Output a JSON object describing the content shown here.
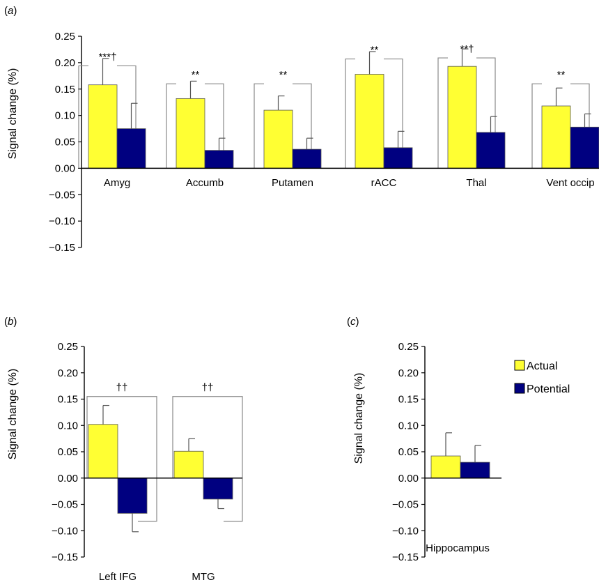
{
  "colors": {
    "actual": "#ffff33",
    "potential": "#000080",
    "axis": "#000000",
    "bracket": "#888888"
  },
  "chart_data": [
    {
      "panel": "(a)",
      "panel_parts": [
        "(",
        "a",
        ")"
      ],
      "type": "bar",
      "ylabel": "Signal change (%)",
      "ylim": [
        -0.15,
        0.25
      ],
      "yticks": [
        "0.25",
        "0.20",
        "0.15",
        "0.10",
        "0.05",
        "0.00",
        "−0.05",
        "−0.10",
        "−0.15"
      ],
      "categories": [
        "Amyg",
        "Accumb",
        "Putamen",
        "rACC",
        "Thal",
        "Vent occip"
      ],
      "series": [
        {
          "name": "Actual",
          "values": [
            0.158,
            0.132,
            0.11,
            0.178,
            0.193,
            0.118
          ],
          "errors": [
            0.05,
            0.033,
            0.027,
            0.043,
            0.033,
            0.034
          ]
        },
        {
          "name": "Potential",
          "values": [
            0.075,
            0.034,
            0.036,
            0.039,
            0.068,
            0.078
          ],
          "errors": [
            0.048,
            0.023,
            0.021,
            0.031,
            0.03,
            0.025
          ]
        }
      ],
      "annotations": [
        {
          "category": "Amyg",
          "text": "***†",
          "bracket_top": 0.194
        },
        {
          "category": "Accumb",
          "text": "**",
          "bracket_top": 0.16
        },
        {
          "category": "Putamen",
          "text": "**",
          "bracket_top": 0.16
        },
        {
          "category": "rACC",
          "text": "**",
          "bracket_top": 0.207
        },
        {
          "category": "Thal",
          "text": "**†",
          "bracket_top": 0.209
        },
        {
          "category": "Vent occip",
          "text": "**",
          "bracket_top": 0.16
        }
      ],
      "grid": false
    },
    {
      "panel": "(b)",
      "panel_parts": [
        "(",
        "b",
        ")"
      ],
      "type": "bar",
      "ylabel": "Signal change (%)",
      "ylim": [
        -0.15,
        0.25
      ],
      "yticks": [
        "0.25",
        "0.20",
        "0.15",
        "0.10",
        "0.05",
        "0.00",
        "−0.05",
        "−0.10",
        "−0.15"
      ],
      "categories": [
        "Left IFG",
        "MTG"
      ],
      "series": [
        {
          "name": "Actual",
          "values": [
            0.102,
            0.051
          ],
          "errors": [
            0.036,
            0.024
          ]
        },
        {
          "name": "Potential",
          "values": [
            -0.067,
            -0.04
          ],
          "errors": [
            0.035,
            0.018
          ]
        }
      ],
      "annotations": [
        {
          "category": "Left IFG",
          "text": "††",
          "bracket_top": 0.155,
          "bracket_bottom": -0.082
        },
        {
          "category": "MTG",
          "text": "††",
          "bracket_top": 0.155,
          "bracket_bottom": -0.082
        }
      ],
      "grid": false
    },
    {
      "panel": "(c)",
      "panel_parts": [
        "(",
        "c",
        ")"
      ],
      "type": "bar",
      "ylabel": "Signal change (%)",
      "ylim": [
        -0.15,
        0.25
      ],
      "yticks": [
        "0.25",
        "0.20",
        "0.15",
        "0.10",
        "0.05",
        "0.00",
        "−0.05",
        "−0.10",
        "−0.15"
      ],
      "categories": [
        "Hippocampus"
      ],
      "series": [
        {
          "name": "Actual",
          "values": [
            0.042
          ],
          "errors": [
            0.044
          ]
        },
        {
          "name": "Potential",
          "values": [
            0.03
          ],
          "errors": [
            0.032
          ]
        }
      ],
      "legend": {
        "placement": "right",
        "entries": [
          "Actual",
          "Potential"
        ]
      },
      "grid": false
    }
  ]
}
